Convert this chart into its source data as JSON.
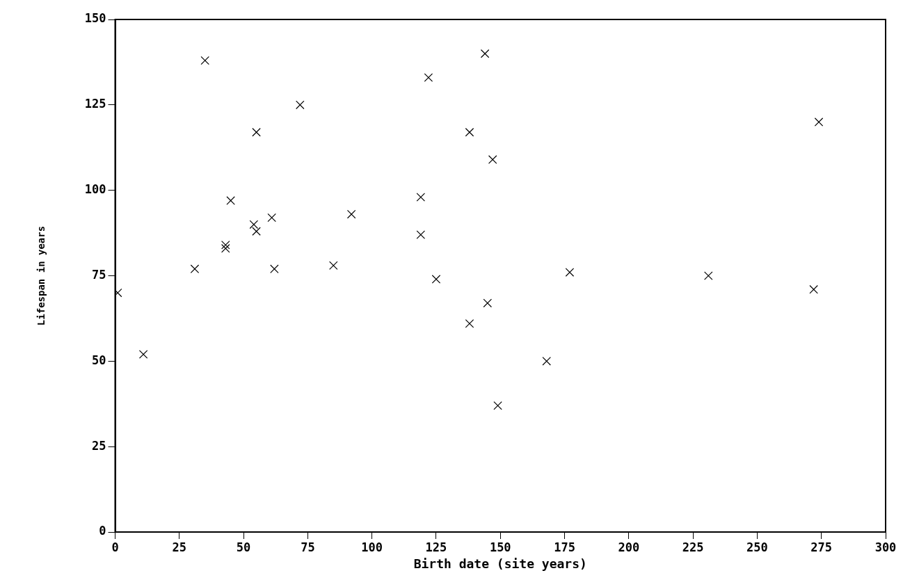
{
  "chart_data": {
    "type": "scatter",
    "xlabel": "Birth date (site years)",
    "ylabel": "Lifespan in years",
    "marker": "cross",
    "series": [
      {
        "color": "#000000",
        "x": [
          1,
          11,
          31,
          35,
          43,
          43,
          45,
          54,
          55,
          55,
          61,
          62,
          72,
          85,
          92,
          119,
          119,
          122,
          125,
          138,
          138,
          144,
          145,
          147,
          149,
          168,
          177,
          231,
          272,
          274
        ],
        "values": [
          70,
          52,
          77,
          138,
          84,
          83,
          97,
          90,
          88,
          117,
          92,
          77,
          125,
          78,
          93,
          98,
          87,
          133,
          74,
          117,
          61,
          140,
          67,
          109,
          37,
          50,
          76,
          75,
          71,
          120
        ]
      }
    ],
    "xlim": [
      0,
      300
    ],
    "xticks": [
      0,
      25,
      50,
      75,
      100,
      125,
      150,
      175,
      200,
      225,
      250,
      275,
      300
    ],
    "ylim": [
      0,
      150
    ],
    "yticks": [
      0,
      25,
      50,
      75,
      100,
      125,
      150
    ]
  }
}
